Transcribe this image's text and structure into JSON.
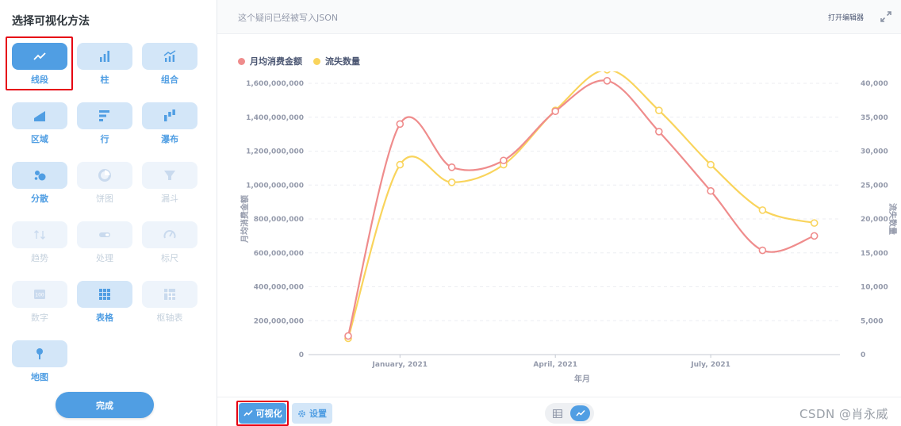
{
  "sidebar": {
    "title": "选择可视化方法",
    "items": [
      {
        "label": "线段",
        "icon": "line-chart-icon",
        "state": "selected"
      },
      {
        "label": "柱",
        "icon": "bar-chart-icon",
        "state": "normal"
      },
      {
        "label": "组合",
        "icon": "combo-chart-icon",
        "state": "normal"
      },
      {
        "label": "区域",
        "icon": "area-chart-icon",
        "state": "normal"
      },
      {
        "label": "行",
        "icon": "row-chart-icon",
        "state": "normal"
      },
      {
        "label": "瀑布",
        "icon": "waterfall-chart-icon",
        "state": "normal"
      },
      {
        "label": "分散",
        "icon": "scatter-chart-icon",
        "state": "normal"
      },
      {
        "label": "饼图",
        "icon": "pie-chart-icon",
        "state": "disabled"
      },
      {
        "label": "漏斗",
        "icon": "funnel-icon",
        "state": "disabled"
      },
      {
        "label": "趋势",
        "icon": "trend-icon",
        "state": "disabled"
      },
      {
        "label": "处理",
        "icon": "progress-icon",
        "state": "disabled"
      },
      {
        "label": "标尺",
        "icon": "gauge-icon",
        "state": "disabled"
      },
      {
        "label": "数字",
        "icon": "number-icon",
        "state": "disabled"
      },
      {
        "label": "表格",
        "icon": "table-icon",
        "state": "normal"
      },
      {
        "label": "枢轴表",
        "icon": "pivot-table-icon",
        "state": "disabled"
      },
      {
        "label": "地图",
        "icon": "map-pin-icon",
        "state": "normal"
      }
    ],
    "done_label": "完成"
  },
  "topbar": {
    "message": "这个疑问已经被写入JSON",
    "open_editor": "打开编辑器"
  },
  "bottombar": {
    "viz_label": "可视化",
    "settings_label": "设置",
    "watermark": "CSDN @肖永威"
  },
  "colors": {
    "accent": "#509ee3",
    "series_amount": "#ef8c8c",
    "series_churn": "#f9d45c",
    "highlight": "#e60012"
  },
  "chart_data": {
    "type": "line",
    "xlabel": "年月",
    "ylabel_left": "月均消费金额",
    "ylabel_right": "流失数量",
    "x_ticks": [
      "January, 2021",
      "April, 2021",
      "July, 2021"
    ],
    "x": [
      "2020-12",
      "2021-01",
      "2021-02",
      "2021-03",
      "2021-04",
      "2021-05",
      "2021-06",
      "2021-07",
      "2021-08",
      "2021-09"
    ],
    "left_ticks": [
      "0",
      "200,000,000",
      "400,000,000",
      "600,000,000",
      "800,000,000",
      "1,000,000,000",
      "1,200,000,000",
      "1,400,000,000",
      "1,600,000,000"
    ],
    "right_ticks": [
      "0",
      "5,000",
      "10,000",
      "15,000",
      "20,000",
      "25,000",
      "30,000",
      "35,000",
      "40,000"
    ],
    "ylim_left": [
      0,
      1600000000
    ],
    "ylim_right": [
      0,
      40000
    ],
    "series": [
      {
        "name": "月均消费金额",
        "axis": "left",
        "color": "#ef8c8c",
        "values": [
          110000000,
          1360000000,
          1105000000,
          1145000000,
          1435000000,
          1615000000,
          1315000000,
          965000000,
          615000000,
          700000000
        ]
      },
      {
        "name": "流失数量",
        "axis": "right",
        "color": "#f9d45c",
        "values": [
          2400,
          28000,
          25400,
          28000,
          36000,
          42000,
          36000,
          28000,
          21300,
          19400
        ]
      }
    ],
    "grid": true,
    "legend_position": "top-left"
  }
}
